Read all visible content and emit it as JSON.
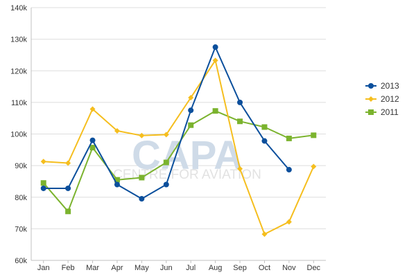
{
  "chart_data": {
    "type": "line",
    "title": "",
    "xlabel": "",
    "ylabel": "",
    "categories": [
      "Jan",
      "Feb",
      "Mar",
      "Apr",
      "May",
      "Jun",
      "Jul",
      "Aug",
      "Sep",
      "Oct",
      "Nov",
      "Dec"
    ],
    "ylim": [
      60000,
      140000
    ],
    "yticks": [
      60000,
      70000,
      80000,
      90000,
      100000,
      110000,
      120000,
      130000,
      140000
    ],
    "ytick_labels": [
      "60k",
      "70k",
      "80k",
      "90k",
      "100k",
      "110k",
      "120k",
      "130k",
      "140k"
    ],
    "grid": "horizontal",
    "legend_position": "right",
    "series": [
      {
        "name": "2013",
        "color": "#0b4f9c",
        "marker": "circle",
        "values": [
          82800,
          82800,
          98000,
          84000,
          79500,
          84000,
          107500,
          127500,
          110000,
          97800,
          88700,
          null
        ]
      },
      {
        "name": "2012",
        "color": "#f5be1e",
        "marker": "diamond",
        "values": [
          91300,
          90800,
          107900,
          101000,
          99500,
          99800,
          111500,
          123300,
          89000,
          68300,
          72200,
          89700
        ]
      },
      {
        "name": "2011",
        "color": "#7bb32e",
        "marker": "square",
        "values": [
          84500,
          75500,
          95700,
          85500,
          86200,
          91000,
          102800,
          107300,
          104000,
          102200,
          98600,
          99600
        ]
      }
    ]
  },
  "watermark": {
    "logo_text": "CAPA",
    "tagline": "CENTRE FOR AVIATION"
  }
}
